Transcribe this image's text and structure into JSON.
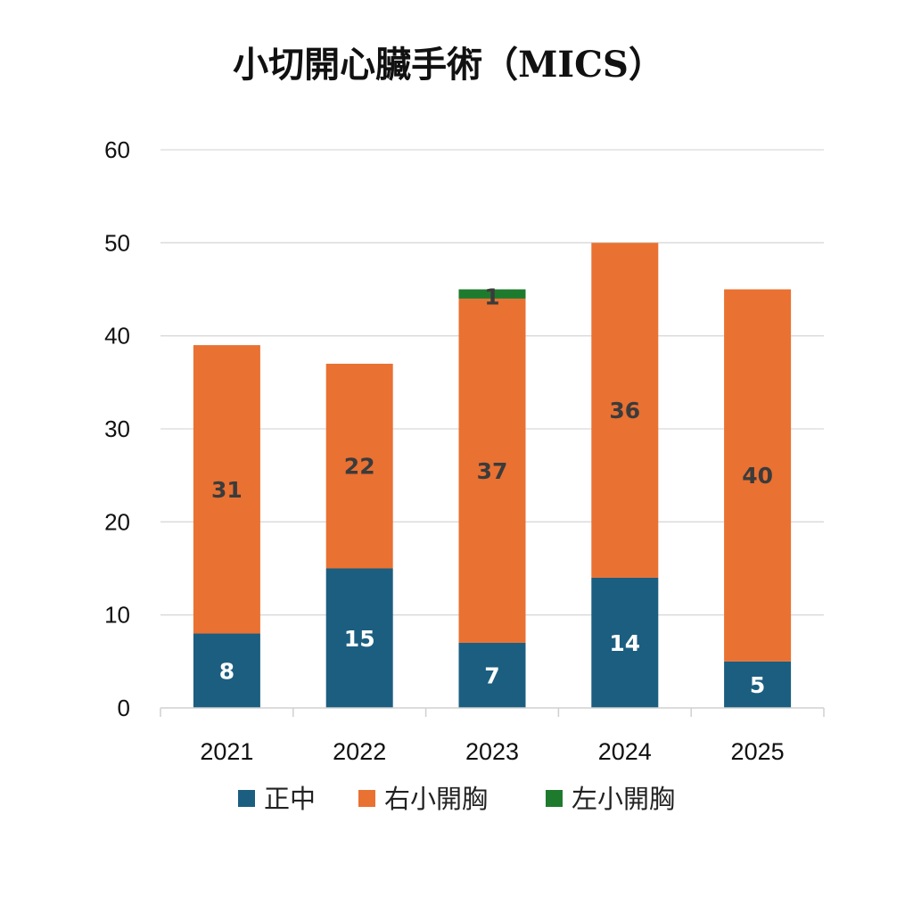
{
  "chart_data": {
    "type": "bar",
    "stacked": true,
    "title": "小切開心臟手術（MICS）",
    "xlabel": "",
    "ylabel": "",
    "categories": [
      "2021",
      "2022",
      "2023",
      "2024",
      "2025"
    ],
    "ylim": [
      0,
      60
    ],
    "yticks": [
      0,
      10,
      20,
      30,
      40,
      50,
      60
    ],
    "grid": true,
    "legend_position": "bottom",
    "series": [
      {
        "name": "正中",
        "color": "#1b5e80",
        "label_color": "#ffffff",
        "values": [
          8,
          15,
          7,
          14,
          5
        ]
      },
      {
        "name": "右小開胸",
        "color": "#e97132",
        "label_color": "#3b3b3b",
        "values": [
          31,
          22,
          37,
          36,
          40
        ]
      },
      {
        "name": "左小開胸",
        "color": "#1e7b2e",
        "label_color": "#3b3b3b",
        "values": [
          0,
          0,
          1,
          0,
          0
        ]
      }
    ],
    "data_labels": [
      [
        "8",
        "15",
        "7",
        "14",
        "5"
      ],
      [
        "31",
        "22",
        "37",
        "36",
        "40"
      ],
      [
        "",
        "",
        "1",
        "",
        ""
      ]
    ]
  }
}
